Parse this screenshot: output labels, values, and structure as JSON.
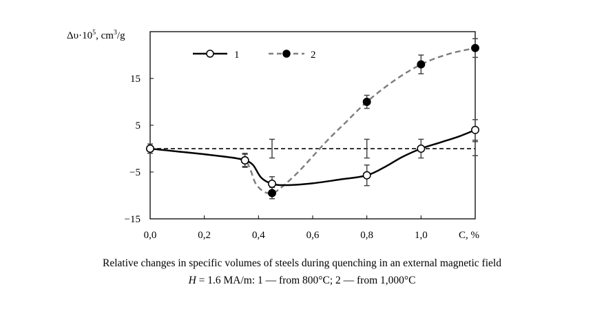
{
  "chart_data": {
    "type": "line",
    "ylabel_prefix": "Δυ·10",
    "ylabel_exp": "5",
    "ylabel_unit": ", cm",
    "ylabel_unit_exp": "3",
    "ylabel_suffix": "/g",
    "xlabel": "C, %",
    "xlim": [
      0,
      1.2
    ],
    "ylim": [
      -15,
      25
    ],
    "x_ticks": [
      {
        "value": 0.0,
        "label": "0,0"
      },
      {
        "value": 0.2,
        "label": "0,2"
      },
      {
        "value": 0.4,
        "label": "0,4"
      },
      {
        "value": 0.6,
        "label": "0,6"
      },
      {
        "value": 0.8,
        "label": "0,8"
      },
      {
        "value": 1.0,
        "label": "1,0"
      }
    ],
    "y_ticks": [
      {
        "value": -15,
        "label": "−15"
      },
      {
        "value": -5,
        "label": "−5"
      },
      {
        "value": 5,
        "label": "5"
      },
      {
        "value": 15,
        "label": "15"
      }
    ],
    "reference_line_y": 0,
    "series": [
      {
        "name": "1",
        "label": "1",
        "style": "solid",
        "marker": "open-circle",
        "color": "#000000",
        "points": [
          {
            "x": 0.0,
            "y": 0.0,
            "err": 1.0
          },
          {
            "x": 0.35,
            "y": -2.5,
            "err": 1.5
          },
          {
            "x": 0.45,
            "y": -7.5,
            "err": 1.5
          },
          {
            "x": 0.8,
            "y": -5.7,
            "err": 2.2
          },
          {
            "x": 1.0,
            "y": 0.0,
            "err": 2.0
          },
          {
            "x": 1.2,
            "y": 4.0,
            "err": 2.2
          }
        ],
        "curve": [
          [
            0.0,
            0.0
          ],
          [
            0.1,
            -0.6
          ],
          [
            0.2,
            -1.2
          ],
          [
            0.3,
            -1.9
          ],
          [
            0.35,
            -2.5
          ],
          [
            0.38,
            -3.5
          ],
          [
            0.41,
            -6.2
          ],
          [
            0.45,
            -7.5
          ],
          [
            0.5,
            -7.8
          ],
          [
            0.6,
            -7.4
          ],
          [
            0.7,
            -6.6
          ],
          [
            0.8,
            -5.7
          ],
          [
            0.87,
            -3.8
          ],
          [
            0.93,
            -1.8
          ],
          [
            1.0,
            0.0
          ],
          [
            1.07,
            1.3
          ],
          [
            1.14,
            2.6
          ],
          [
            1.2,
            4.0
          ]
        ]
      },
      {
        "name": "2",
        "label": "2",
        "style": "dashed",
        "marker": "filled-circle",
        "color": "#7f7f7f",
        "points": [
          {
            "x": 0.0,
            "y": 0.0,
            "err": 0
          },
          {
            "x": 0.35,
            "y": -2.5,
            "err": 1.3
          },
          {
            "x": 0.45,
            "y": -9.5,
            "err": 1.2
          },
          {
            "x": 0.8,
            "y": 10.0,
            "err": 1.4
          },
          {
            "x": 1.0,
            "y": 18.0,
            "err": 2.0
          },
          {
            "x": 1.2,
            "y": 21.5,
            "err": 2.0
          }
        ],
        "error_bars_on_reference": [
          {
            "x": 0.45,
            "y": 0.0,
            "err": 2.0
          },
          {
            "x": 0.8,
            "y": 0.0,
            "err": 2.0
          },
          {
            "x": 1.2,
            "y": 0.0,
            "err": 1.5
          }
        ],
        "curve": [
          [
            0.0,
            0.0
          ],
          [
            0.1,
            -0.6
          ],
          [
            0.2,
            -1.2
          ],
          [
            0.3,
            -1.9
          ],
          [
            0.35,
            -2.5
          ],
          [
            0.37,
            -4.5
          ],
          [
            0.39,
            -7.5
          ],
          [
            0.42,
            -9.2
          ],
          [
            0.45,
            -9.5
          ],
          [
            0.48,
            -8.5
          ],
          [
            0.55,
            -4.8
          ],
          [
            0.65,
            1.5
          ],
          [
            0.72,
            5.5
          ],
          [
            0.8,
            10.0
          ],
          [
            0.9,
            14.5
          ],
          [
            1.0,
            18.0
          ],
          [
            1.1,
            20.2
          ],
          [
            1.2,
            21.5
          ]
        ]
      }
    ],
    "legend_position": "top-left"
  },
  "caption": {
    "line1": "Relative changes in specific volumes of steels during quenching in an external magnetic field",
    "line2_var": "H",
    "line2_rest": " = 1.6 MA/m: 1 — from 800°C; 2 — from 1,000°C"
  }
}
